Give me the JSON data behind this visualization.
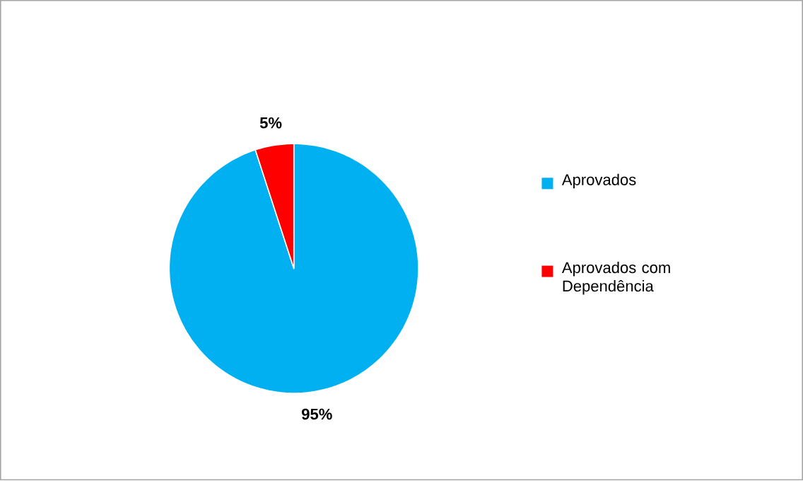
{
  "chart_data": {
    "type": "pie",
    "categories": [
      "Aprovados",
      "Aprovados com Dependência"
    ],
    "values": [
      95,
      5
    ],
    "colors": [
      "#00b0f0",
      "#ff0000"
    ],
    "value_labels": [
      "95%",
      "5%"
    ],
    "legend": "right"
  }
}
